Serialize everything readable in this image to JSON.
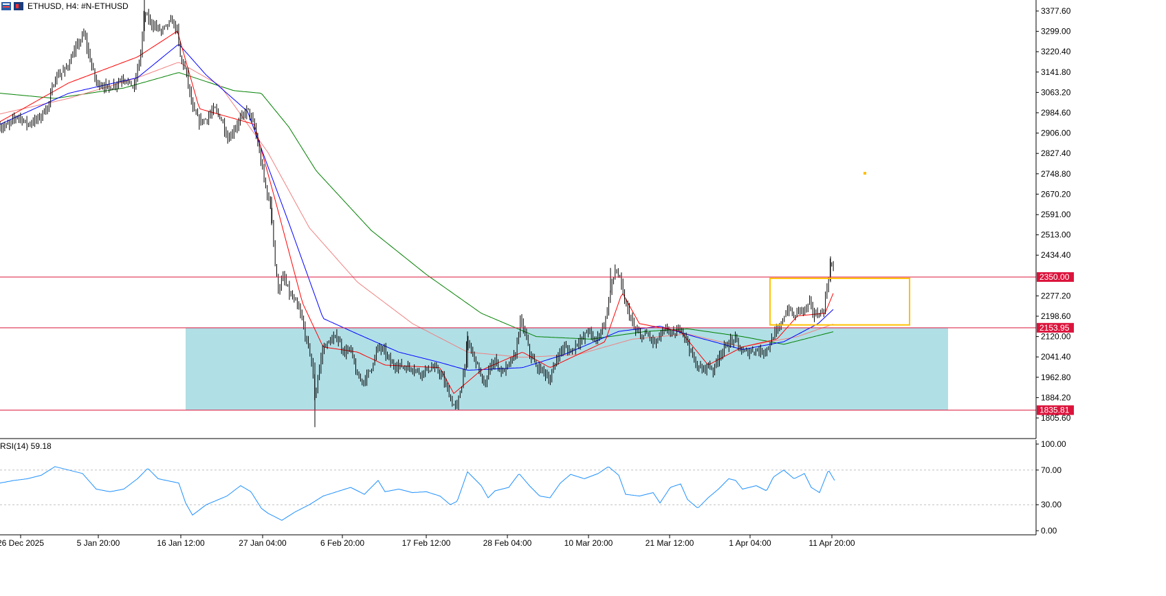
{
  "header": {
    "symbol_text": "ETHUSD, H4:  #N-ETHUSD",
    "icon_left": "chart-type-icon",
    "icon_right": "one-click-trading-icon"
  },
  "colors": {
    "candle": "#000000",
    "ema_fast": "#ff0000",
    "ema_mid": "#0000ff",
    "ema_slow": "#f08080",
    "ema_long": "#008000",
    "hline": "#dc143c",
    "zone_fill": "#b0dfe6",
    "box_stroke": "#ffc000",
    "rsi": "#1e90ff",
    "grid": "#c0c0c0"
  },
  "chart_data": [
    {
      "type": "candlestick",
      "symbol": "ETHUSD",
      "timeframe": "H4",
      "ylim": [
        1760,
        3430
      ],
      "y_ticks": [
        "3377.60",
        "3299.00",
        "3220.40",
        "3141.80",
        "3063.20",
        "2984.60",
        "2906.00",
        "2827.40",
        "2748.80",
        "2670.20",
        "2591.00",
        "2513.00",
        "2434.40",
        "2277.20",
        "2198.60",
        "2120.00",
        "2041.40",
        "1962.80",
        "1884.20",
        "1805.60"
      ],
      "x_ticks": [
        "26 Dec 2025",
        "5 Jan 20:00",
        "16 Jan 12:00",
        "27 Jan 04:00",
        "6 Feb 20:00",
        "17 Feb 12:00",
        "28 Feb 04:00",
        "10 Mar 20:00",
        "21 Mar 12:00",
        "1 Apr 04:00",
        "11 Apr 20:00"
      ],
      "price_keypoints": [
        [
          0,
          2930
        ],
        [
          12,
          2935
        ],
        [
          25,
          2975
        ],
        [
          40,
          2940
        ],
        [
          55,
          2960
        ],
        [
          70,
          3010
        ],
        [
          80,
          3120
        ],
        [
          95,
          3150
        ],
        [
          110,
          3230
        ],
        [
          122,
          3290
        ],
        [
          130,
          3200
        ],
        [
          140,
          3100
        ],
        [
          160,
          3080
        ],
        [
          180,
          3120
        ],
        [
          195,
          3080
        ],
        [
          205,
          3220
        ],
        [
          210,
          3370
        ],
        [
          220,
          3330
        ],
        [
          235,
          3300
        ],
        [
          250,
          3340
        ],
        [
          258,
          3300
        ],
        [
          262,
          3200
        ],
        [
          270,
          3150
        ],
        [
          280,
          3000
        ],
        [
          290,
          2950
        ],
        [
          300,
          2960
        ],
        [
          312,
          3000
        ],
        [
          322,
          2960
        ],
        [
          332,
          2880
        ],
        [
          340,
          2920
        ],
        [
          350,
          2960
        ],
        [
          360,
          3000
        ],
        [
          370,
          2930
        ],
        [
          378,
          2820
        ],
        [
          386,
          2700
        ],
        [
          395,
          2600
        ],
        [
          400,
          2400
        ],
        [
          405,
          2300
        ],
        [
          412,
          2350
        ],
        [
          422,
          2280
        ],
        [
          430,
          2250
        ],
        [
          438,
          2200
        ],
        [
          446,
          2100
        ],
        [
          452,
          2050
        ],
        [
          458,
          1880
        ],
        [
          462,
          1960
        ],
        [
          470,
          2080
        ],
        [
          480,
          2100
        ],
        [
          490,
          2120
        ],
        [
          500,
          2060
        ],
        [
          510,
          2070
        ],
        [
          520,
          1960
        ],
        [
          530,
          1950
        ],
        [
          540,
          2000
        ],
        [
          550,
          2080
        ],
        [
          560,
          2060
        ],
        [
          570,
          2010
        ],
        [
          580,
          2010
        ],
        [
          590,
          2000
        ],
        [
          600,
          2000
        ],
        [
          610,
          1980
        ],
        [
          620,
          1990
        ],
        [
          630,
          2000
        ],
        [
          640,
          1980
        ],
        [
          650,
          1920
        ],
        [
          658,
          1860
        ],
        [
          665,
          1850
        ],
        [
          672,
          1940
        ],
        [
          680,
          2100
        ],
        [
          688,
          2050
        ],
        [
          696,
          2000
        ],
        [
          705,
          1920
        ],
        [
          712,
          2000
        ],
        [
          720,
          2030
        ],
        [
          730,
          1980
        ],
        [
          740,
          2010
        ],
        [
          750,
          2050
        ],
        [
          756,
          2180
        ],
        [
          762,
          2150
        ],
        [
          770,
          2060
        ],
        [
          780,
          2000
        ],
        [
          790,
          1990
        ],
        [
          800,
          1950
        ],
        [
          810,
          2040
        ],
        [
          820,
          2080
        ],
        [
          830,
          2060
        ],
        [
          840,
          2100
        ],
        [
          848,
          2110
        ],
        [
          856,
          2150
        ],
        [
          864,
          2100
        ],
        [
          874,
          2140
        ],
        [
          882,
          2200
        ],
        [
          888,
          2300
        ],
        [
          895,
          2380
        ],
        [
          902,
          2340
        ],
        [
          908,
          2260
        ],
        [
          915,
          2210
        ],
        [
          922,
          2150
        ],
        [
          932,
          2120
        ],
        [
          942,
          2130
        ],
        [
          952,
          2090
        ],
        [
          962,
          2130
        ],
        [
          972,
          2150
        ],
        [
          980,
          2120
        ],
        [
          990,
          2160
        ],
        [
          1000,
          2100
        ],
        [
          1010,
          2020
        ],
        [
          1020,
          1990
        ],
        [
          1030,
          2010
        ],
        [
          1038,
          1990
        ],
        [
          1046,
          2050
        ],
        [
          1055,
          2080
        ],
        [
          1062,
          2100
        ],
        [
          1070,
          2110
        ],
        [
          1078,
          2060
        ],
        [
          1088,
          2060
        ],
        [
          1098,
          2070
        ],
        [
          1108,
          2060
        ],
        [
          1118,
          2080
        ],
        [
          1126,
          2130
        ],
        [
          1134,
          2150
        ],
        [
          1140,
          2200
        ],
        [
          1148,
          2230
        ],
        [
          1155,
          2190
        ],
        [
          1162,
          2230
        ],
        [
          1170,
          2220
        ],
        [
          1178,
          2250
        ],
        [
          1185,
          2200
        ],
        [
          1192,
          2210
        ],
        [
          1198,
          2220
        ],
        [
          1204,
          2330
        ],
        [
          1208,
          2410
        ],
        [
          1214,
          2360
        ]
      ],
      "ema_fast_keypoints": [
        [
          0,
          2950
        ],
        [
          100,
          3100
        ],
        [
          200,
          3200
        ],
        [
          258,
          3300
        ],
        [
          290,
          3000
        ],
        [
          370,
          2940
        ],
        [
          400,
          2650
        ],
        [
          440,
          2250
        ],
        [
          470,
          2080
        ],
        [
          520,
          2060
        ],
        [
          560,
          2010
        ],
        [
          640,
          2000
        ],
        [
          660,
          1900
        ],
        [
          700,
          1990
        ],
        [
          760,
          2060
        ],
        [
          800,
          2000
        ],
        [
          880,
          2100
        ],
        [
          905,
          2290
        ],
        [
          930,
          2170
        ],
        [
          990,
          2140
        ],
        [
          1030,
          2010
        ],
        [
          1080,
          2080
        ],
        [
          1130,
          2110
        ],
        [
          1160,
          2200
        ],
        [
          1200,
          2210
        ],
        [
          1214,
          2300
        ]
      ],
      "ema_mid_keypoints": [
        [
          0,
          2940
        ],
        [
          100,
          3060
        ],
        [
          200,
          3120
        ],
        [
          260,
          3250
        ],
        [
          300,
          3130
        ],
        [
          360,
          2990
        ],
        [
          420,
          2560
        ],
        [
          470,
          2190
        ],
        [
          520,
          2130
        ],
        [
          580,
          2060
        ],
        [
          640,
          2020
        ],
        [
          680,
          1990
        ],
        [
          760,
          2000
        ],
        [
          820,
          2050
        ],
        [
          900,
          2140
        ],
        [
          960,
          2160
        ],
        [
          1010,
          2120
        ],
        [
          1080,
          2070
        ],
        [
          1140,
          2100
        ],
        [
          1190,
          2170
        ],
        [
          1214,
          2230
        ]
      ],
      "ema_slow_keypoints": [
        [
          0,
          2980
        ],
        [
          100,
          3040
        ],
        [
          200,
          3120
        ],
        [
          260,
          3180
        ],
        [
          320,
          3090
        ],
        [
          390,
          2830
        ],
        [
          450,
          2540
        ],
        [
          520,
          2330
        ],
        [
          600,
          2170
        ],
        [
          680,
          2060
        ],
        [
          760,
          2040
        ],
        [
          840,
          2050
        ],
        [
          920,
          2110
        ],
        [
          1000,
          2130
        ],
        [
          1080,
          2080
        ],
        [
          1160,
          2120
        ],
        [
          1214,
          2170
        ]
      ],
      "ema_long_keypoints": [
        [
          0,
          3060
        ],
        [
          80,
          3040
        ],
        [
          180,
          3080
        ],
        [
          260,
          3140
        ],
        [
          340,
          3070
        ],
        [
          380,
          3060
        ],
        [
          420,
          2930
        ],
        [
          460,
          2760
        ],
        [
          540,
          2530
        ],
        [
          620,
          2360
        ],
        [
          700,
          2210
        ],
        [
          780,
          2120
        ],
        [
          860,
          2110
        ],
        [
          940,
          2140
        ],
        [
          1000,
          2150
        ],
        [
          1080,
          2120
        ],
        [
          1140,
          2090
        ],
        [
          1214,
          2140
        ]
      ],
      "horizontal_levels": [
        {
          "label": "2350.00",
          "value": 2350.0
        },
        {
          "label": "2153.95",
          "value": 2153.95
        },
        {
          "label": "1835.81",
          "value": 1835.81
        }
      ],
      "zone": {
        "y0": 1835.81,
        "y1": 2153.95
      },
      "box": {
        "y0": 2165,
        "y1": 2345
      }
    },
    {
      "type": "line",
      "name": "RSI",
      "title": "RSI(14) 59.18",
      "ylim": [
        0,
        100
      ],
      "y_ticks": [
        "100.00",
        "70.00",
        "30.00",
        "0.00"
      ],
      "reference_levels": [
        70,
        30
      ],
      "rsi_keypoints": [
        [
          0,
          55
        ],
        [
          20,
          58
        ],
        [
          40,
          60
        ],
        [
          60,
          64
        ],
        [
          80,
          74
        ],
        [
          100,
          70
        ],
        [
          120,
          66
        ],
        [
          140,
          48
        ],
        [
          160,
          45
        ],
        [
          180,
          48
        ],
        [
          200,
          60
        ],
        [
          215,
          72
        ],
        [
          230,
          60
        ],
        [
          260,
          55
        ],
        [
          270,
          32
        ],
        [
          280,
          18
        ],
        [
          300,
          30
        ],
        [
          330,
          40
        ],
        [
          350,
          52
        ],
        [
          365,
          45
        ],
        [
          380,
          26
        ],
        [
          390,
          20
        ],
        [
          410,
          12
        ],
        [
          430,
          22
        ],
        [
          450,
          30
        ],
        [
          470,
          40
        ],
        [
          490,
          45
        ],
        [
          510,
          50
        ],
        [
          530,
          42
        ],
        [
          550,
          58
        ],
        [
          560,
          45
        ],
        [
          580,
          48
        ],
        [
          600,
          44
        ],
        [
          620,
          45
        ],
        [
          640,
          40
        ],
        [
          655,
          30
        ],
        [
          665,
          34
        ],
        [
          680,
          68
        ],
        [
          690,
          60
        ],
        [
          700,
          52
        ],
        [
          710,
          38
        ],
        [
          720,
          46
        ],
        [
          740,
          50
        ],
        [
          755,
          66
        ],
        [
          770,
          52
        ],
        [
          785,
          40
        ],
        [
          800,
          38
        ],
        [
          815,
          55
        ],
        [
          830,
          65
        ],
        [
          850,
          60
        ],
        [
          870,
          66
        ],
        [
          885,
          74
        ],
        [
          900,
          64
        ],
        [
          910,
          42
        ],
        [
          930,
          40
        ],
        [
          950,
          44
        ],
        [
          960,
          32
        ],
        [
          975,
          50
        ],
        [
          990,
          54
        ],
        [
          1000,
          36
        ],
        [
          1015,
          26
        ],
        [
          1030,
          38
        ],
        [
          1045,
          48
        ],
        [
          1060,
          60
        ],
        [
          1070,
          58
        ],
        [
          1080,
          48
        ],
        [
          1100,
          52
        ],
        [
          1115,
          46
        ],
        [
          1125,
          62
        ],
        [
          1140,
          70
        ],
        [
          1155,
          60
        ],
        [
          1170,
          66
        ],
        [
          1180,
          50
        ],
        [
          1192,
          44
        ],
        [
          1205,
          70
        ],
        [
          1214,
          58
        ]
      ]
    }
  ]
}
